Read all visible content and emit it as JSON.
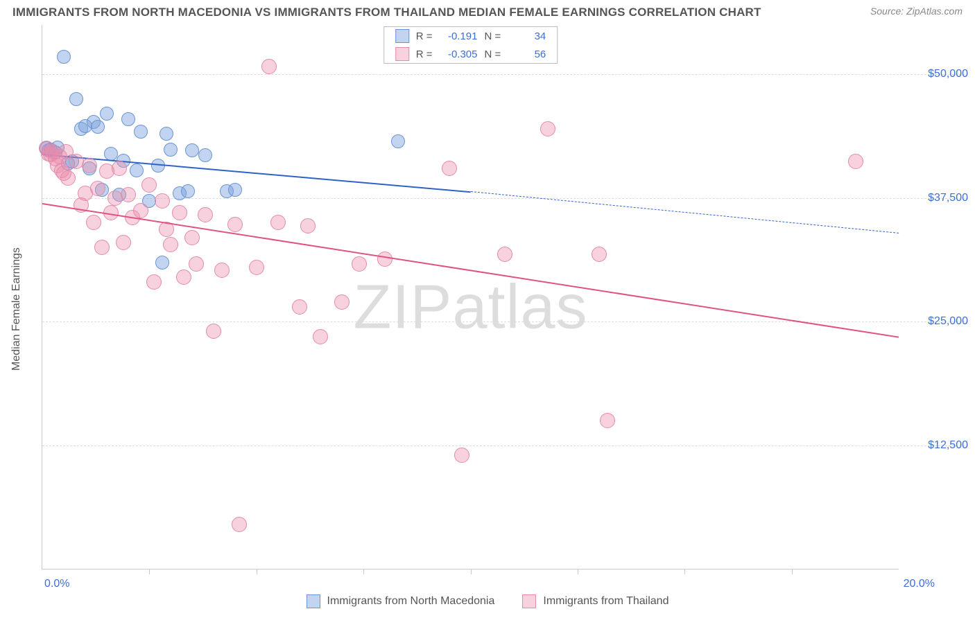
{
  "title": "IMMIGRANTS FROM NORTH MACEDONIA VS IMMIGRANTS FROM THAILAND MEDIAN FEMALE EARNINGS CORRELATION CHART",
  "source": "Source: ZipAtlas.com",
  "watermark": "ZIPatlas",
  "y_axis_title": "Median Female Earnings",
  "chart": {
    "type": "scatter",
    "xlim": [
      0,
      20
    ],
    "ylim": [
      0,
      55000
    ],
    "x_tick_positions": [
      2.5,
      5.0,
      7.5,
      10.0,
      12.5,
      15.0,
      17.5
    ],
    "x_label_min": "0.0%",
    "x_label_max": "20.0%",
    "y_gridlines": [
      {
        "v": 12500,
        "label": "$12,500"
      },
      {
        "v": 25000,
        "label": "$25,000"
      },
      {
        "v": 37500,
        "label": "$37,500"
      },
      {
        "v": 50000,
        "label": "$50,000"
      }
    ],
    "background_color": "#ffffff",
    "grid_color": "#dcdcdc",
    "axis_color": "#c9c9c9",
    "tick_label_color": "#3b6fd6"
  },
  "series": [
    {
      "key": "macedonia",
      "label": "Immigrants from North Macedonia",
      "color_fill": "rgba(120,160,220,0.45)",
      "color_stroke": "#6a95d6",
      "line_color": "#2f62c9",
      "R": "-0.191",
      "N": "34",
      "regression": {
        "x0": 0,
        "y0": 42000,
        "x1": 10,
        "y1": 38200,
        "dash_x1": 20,
        "dash_y1": 34000
      },
      "marker_radius": 9,
      "points": [
        [
          0.1,
          42500
        ],
        [
          0.15,
          42300
        ],
        [
          0.2,
          42400
        ],
        [
          0.3,
          42100
        ],
        [
          0.35,
          42600
        ],
        [
          0.5,
          51800
        ],
        [
          0.6,
          41000
        ],
        [
          0.7,
          41200
        ],
        [
          0.8,
          47500
        ],
        [
          0.9,
          44500
        ],
        [
          1.0,
          44800
        ],
        [
          1.1,
          40500
        ],
        [
          1.2,
          45200
        ],
        [
          1.3,
          44700
        ],
        [
          1.4,
          38300
        ],
        [
          1.5,
          46000
        ],
        [
          1.6,
          42000
        ],
        [
          1.8,
          37800
        ],
        [
          1.9,
          41300
        ],
        [
          2.0,
          45500
        ],
        [
          2.2,
          40300
        ],
        [
          2.3,
          44200
        ],
        [
          2.5,
          37200
        ],
        [
          2.7,
          40800
        ],
        [
          2.8,
          31000
        ],
        [
          2.9,
          44000
        ],
        [
          3.0,
          42400
        ],
        [
          3.2,
          38000
        ],
        [
          3.4,
          38200
        ],
        [
          3.5,
          42300
        ],
        [
          3.8,
          41800
        ],
        [
          4.3,
          38200
        ],
        [
          4.5,
          38300
        ],
        [
          8.3,
          43200
        ]
      ]
    },
    {
      "key": "thailand",
      "label": "Immigrants from Thailand",
      "color_fill": "rgba(235,140,170,0.40)",
      "color_stroke": "#e48aac",
      "line_color": "#e0537f",
      "R": "-0.305",
      "N": "56",
      "regression": {
        "x0": 0,
        "y0": 37000,
        "x1": 20,
        "y1": 23500
      },
      "marker_radius": 10,
      "points": [
        [
          0.1,
          42500
        ],
        [
          0.15,
          42000
        ],
        [
          0.2,
          41900
        ],
        [
          0.25,
          42200
        ],
        [
          0.3,
          41500
        ],
        [
          0.35,
          40800
        ],
        [
          0.4,
          41700
        ],
        [
          0.45,
          40300
        ],
        [
          0.5,
          40000
        ],
        [
          0.55,
          42200
        ],
        [
          0.6,
          39500
        ],
        [
          0.8,
          41200
        ],
        [
          0.9,
          36800
        ],
        [
          1.0,
          38000
        ],
        [
          1.1,
          40800
        ],
        [
          1.2,
          35000
        ],
        [
          1.3,
          38500
        ],
        [
          1.4,
          32500
        ],
        [
          1.5,
          40200
        ],
        [
          1.6,
          36000
        ],
        [
          1.7,
          37500
        ],
        [
          1.8,
          40500
        ],
        [
          1.9,
          33000
        ],
        [
          2.0,
          37800
        ],
        [
          2.1,
          35500
        ],
        [
          2.3,
          36200
        ],
        [
          2.5,
          38800
        ],
        [
          2.6,
          29000
        ],
        [
          2.8,
          37200
        ],
        [
          2.9,
          34300
        ],
        [
          3.0,
          32800
        ],
        [
          3.2,
          36000
        ],
        [
          3.3,
          29500
        ],
        [
          3.5,
          33500
        ],
        [
          3.6,
          30800
        ],
        [
          3.8,
          35800
        ],
        [
          4.0,
          24000
        ],
        [
          4.2,
          30200
        ],
        [
          4.5,
          34800
        ],
        [
          4.6,
          4500
        ],
        [
          5.0,
          30500
        ],
        [
          5.3,
          50800
        ],
        [
          5.5,
          35000
        ],
        [
          6.0,
          26500
        ],
        [
          6.2,
          34700
        ],
        [
          6.5,
          23500
        ],
        [
          7.0,
          27000
        ],
        [
          7.4,
          30800
        ],
        [
          8.0,
          31300
        ],
        [
          9.5,
          40500
        ],
        [
          9.8,
          11500
        ],
        [
          10.8,
          31800
        ],
        [
          11.8,
          44500
        ],
        [
          13.0,
          31800
        ],
        [
          13.2,
          15000
        ],
        [
          19.0,
          41200
        ]
      ]
    }
  ]
}
